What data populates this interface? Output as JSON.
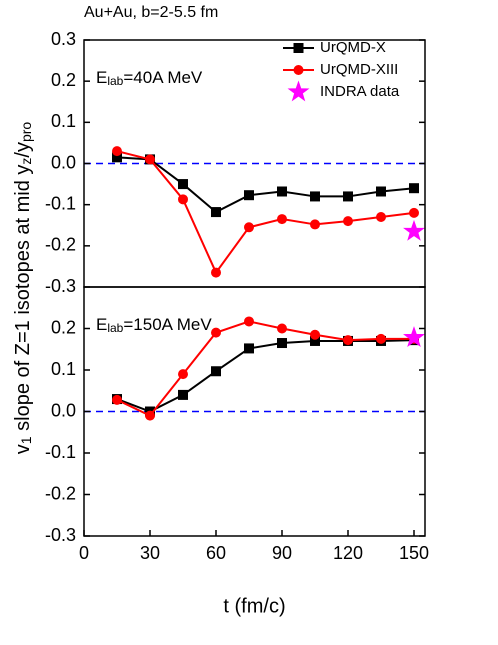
{
  "chart_data": [
    {
      "type": "line",
      "title": "Au+Au, b=2-5.5 fm",
      "ylabel": [
        "v",
        "1",
        " slope of Z=1 isotopes at mid y",
        "z",
        "/y",
        "pro"
      ],
      "annotation": [
        "E",
        "lab",
        "=40A MeV"
      ],
      "xlim": [
        0,
        155
      ],
      "ylim": [
        -0.3,
        0.3
      ],
      "yticks": [
        -0.3,
        -0.2,
        -0.1,
        {
          "value": 0,
          "label": "0.0"
        },
        0.1,
        0.2,
        0.3
      ],
      "hline": 0,
      "legend": "upper right",
      "series": [
        {
          "name": "UrQMD-X",
          "color": "#000000",
          "marker": "square",
          "x": [
            15,
            30,
            45,
            60,
            75,
            90,
            105,
            120,
            135,
            150
          ],
          "values": [
            0.015,
            0.01,
            -0.05,
            -0.118,
            -0.077,
            -0.068,
            -0.08,
            -0.08,
            -0.068,
            -0.06
          ]
        },
        {
          "name": "UrQMD-XIII",
          "color": "#ff0000",
          "marker": "circle",
          "x": [
            15,
            30,
            45,
            60,
            75,
            90,
            105,
            120,
            135,
            150
          ],
          "values": [
            0.03,
            0.01,
            -0.087,
            -0.265,
            -0.155,
            -0.135,
            -0.148,
            -0.14,
            -0.13,
            -0.12
          ]
        },
        {
          "name": "INDRA data",
          "color": "#ff00ff",
          "marker": "star",
          "linestyle": "none",
          "x": [
            150
          ],
          "values": [
            -0.165
          ]
        }
      ]
    },
    {
      "type": "line",
      "annotation": [
        "E",
        "lab",
        "=150A MeV"
      ],
      "xlabel": "t (fm/c)",
      "xlim": [
        0,
        155
      ],
      "ylim": [
        -0.3,
        0.3
      ],
      "xticks": [
        0,
        30,
        60,
        90,
        120,
        150
      ],
      "yticks": [
        -0.3,
        -0.2,
        -0.1,
        {
          "value": 0,
          "label": "0.0"
        },
        0.1,
        0.2
      ],
      "hline": 0,
      "series": [
        {
          "color": "#000000",
          "marker": "square",
          "x": [
            15,
            30,
            45,
            60,
            75,
            90,
            105,
            120,
            135,
            150
          ],
          "values": [
            0.03,
            0.0,
            0.04,
            0.097,
            0.152,
            0.165,
            0.17,
            0.17,
            0.17,
            0.172
          ]
        },
        {
          "color": "#ff0000",
          "marker": "circle",
          "x": [
            15,
            30,
            45,
            60,
            75,
            90,
            105,
            120,
            135,
            150
          ],
          "values": [
            0.028,
            -0.01,
            0.09,
            0.19,
            0.217,
            0.2,
            0.185,
            0.172,
            0.175,
            0.175
          ]
        },
        {
          "color": "#ff00ff",
          "marker": "star",
          "linestyle": "none",
          "x": [
            150
          ],
          "values": [
            0.178
          ]
        }
      ]
    }
  ]
}
